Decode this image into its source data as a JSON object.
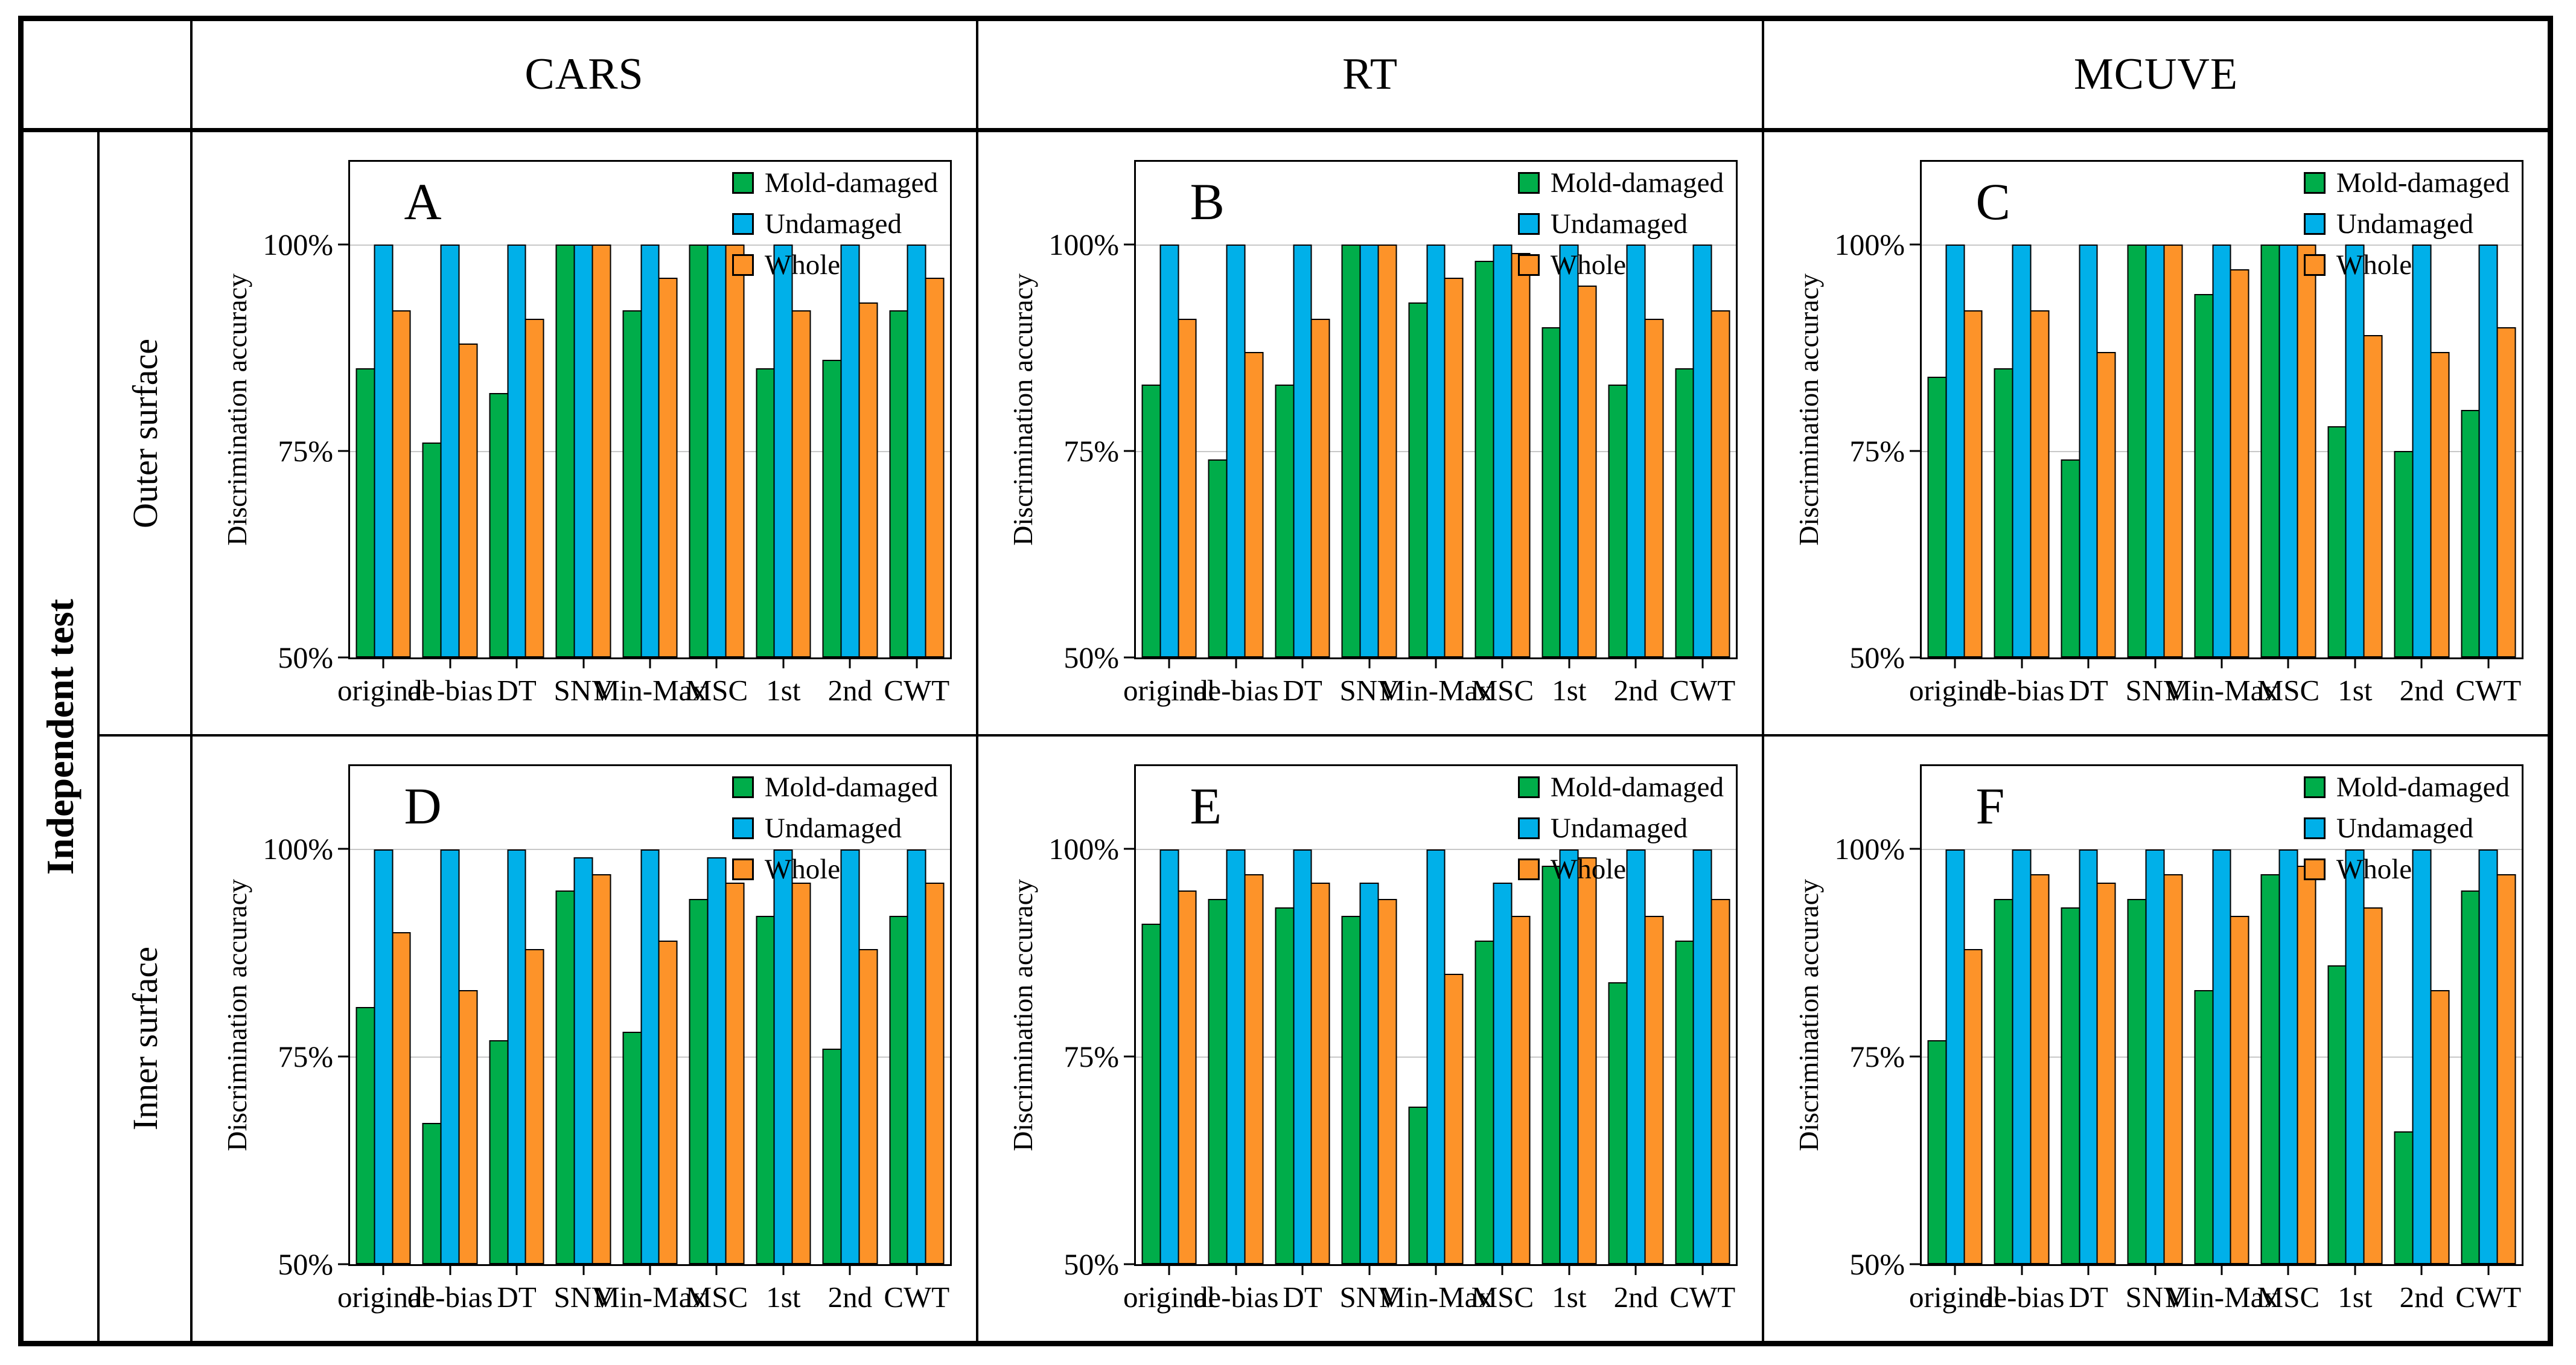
{
  "header": {
    "corner": "",
    "columns": [
      "CARS",
      "RT",
      "MCUVE"
    ]
  },
  "rows": {
    "group_label": "Independent test",
    "row_labels": [
      "Outer surface",
      "Inner surface"
    ]
  },
  "legend": {
    "items": [
      {
        "label": "Mold-damaged",
        "color": "#00AD4A"
      },
      {
        "label": "Undamaged",
        "color": "#00B0E9"
      },
      {
        "label": "Whole",
        "color": "#FD9329"
      }
    ]
  },
  "yaxis": {
    "label": "Discrimination accuracy",
    "ticks": [
      {
        "value": 100,
        "label": "100%"
      },
      {
        "value": 75,
        "label": "75%"
      },
      {
        "value": 50,
        "label": "50%"
      }
    ],
    "gridlines": [
      75,
      100
    ],
    "gridline_color": "#c8c8c8"
  },
  "chart_data": [
    {
      "panel": "A",
      "type": "bar",
      "row": "Outer surface",
      "column": "CARS",
      "ylabel": "Discrimination accuracy",
      "ylim": [
        50,
        100
      ],
      "legend_position": "top-right",
      "categories": [
        "original",
        "de-bias",
        "DT",
        "SNV",
        "Min-Max",
        "MSC",
        "1st",
        "2nd",
        "CWT"
      ],
      "series": [
        {
          "name": "Mold-damaged",
          "values": [
            85,
            76,
            82,
            100,
            92,
            100,
            85,
            86,
            92
          ]
        },
        {
          "name": "Undamaged",
          "values": [
            100,
            100,
            100,
            100,
            100,
            100,
            100,
            100,
            100
          ]
        },
        {
          "name": "Whole",
          "values": [
            92,
            88,
            91,
            100,
            96,
            100,
            92,
            93,
            96
          ]
        }
      ]
    },
    {
      "panel": "B",
      "type": "bar",
      "row": "Outer surface",
      "column": "RT",
      "ylabel": "Discrimination accuracy",
      "ylim": [
        50,
        100
      ],
      "legend_position": "top-right",
      "categories": [
        "original",
        "de-bias",
        "DT",
        "SNV",
        "Min-Max",
        "MSC",
        "1st",
        "2nd",
        "CWT"
      ],
      "series": [
        {
          "name": "Mold-damaged",
          "values": [
            83,
            74,
            83,
            100,
            93,
            98,
            90,
            83,
            85
          ]
        },
        {
          "name": "Undamaged",
          "values": [
            100,
            100,
            100,
            100,
            100,
            100,
            100,
            100,
            100
          ]
        },
        {
          "name": "Whole",
          "values": [
            91,
            87,
            91,
            100,
            96,
            99,
            95,
            91,
            92
          ]
        }
      ]
    },
    {
      "panel": "C",
      "type": "bar",
      "row": "Outer surface",
      "column": "MCUVE",
      "ylabel": "Discrimination accuracy",
      "ylim": [
        50,
        100
      ],
      "legend_position": "top-right",
      "categories": [
        "original",
        "de-bias",
        "DT",
        "SNV",
        "Min-Max",
        "MSC",
        "1st",
        "2nd",
        "CWT"
      ],
      "series": [
        {
          "name": "Mold-damaged",
          "values": [
            84,
            85,
            74,
            100,
            94,
            100,
            78,
            75,
            80
          ]
        },
        {
          "name": "Undamaged",
          "values": [
            100,
            100,
            100,
            100,
            100,
            100,
            100,
            100,
            100
          ]
        },
        {
          "name": "Whole",
          "values": [
            92,
            92,
            87,
            100,
            97,
            100,
            89,
            87,
            90
          ]
        }
      ]
    },
    {
      "panel": "D",
      "type": "bar",
      "row": "Inner surface",
      "column": "CARS",
      "ylabel": "Discrimination accuracy",
      "ylim": [
        50,
        100
      ],
      "legend_position": "top-right",
      "categories": [
        "original",
        "de-bias",
        "DT",
        "SNV",
        "Min-Max",
        "MSC",
        "1st",
        "2nd",
        "CWT"
      ],
      "series": [
        {
          "name": "Mold-damaged",
          "values": [
            81,
            67,
            77,
            95,
            78,
            94,
            92,
            76,
            92
          ]
        },
        {
          "name": "Undamaged",
          "values": [
            100,
            100,
            100,
            99,
            100,
            99,
            100,
            100,
            100
          ]
        },
        {
          "name": "Whole",
          "values": [
            90,
            83,
            88,
            97,
            89,
            96,
            96,
            88,
            96
          ]
        }
      ]
    },
    {
      "panel": "E",
      "type": "bar",
      "row": "Inner surface",
      "column": "RT",
      "ylabel": "Discrimination accuracy",
      "ylim": [
        50,
        100
      ],
      "legend_position": "top-right",
      "categories": [
        "original",
        "de-bias",
        "DT",
        "SNV",
        "Min-Max",
        "MSC",
        "1st",
        "2nd",
        "CWT"
      ],
      "series": [
        {
          "name": "Mold-damaged",
          "values": [
            91,
            94,
            93,
            92,
            69,
            89,
            98,
            84,
            89
          ]
        },
        {
          "name": "Undamaged",
          "values": [
            100,
            100,
            100,
            96,
            100,
            96,
            100,
            100,
            100
          ]
        },
        {
          "name": "Whole",
          "values": [
            95,
            97,
            96,
            94,
            85,
            92,
            99,
            92,
            94
          ]
        }
      ]
    },
    {
      "panel": "F",
      "type": "bar",
      "row": "Inner surface",
      "column": "MCUVE",
      "ylabel": "Discrimination accuracy",
      "ylim": [
        50,
        100
      ],
      "legend_position": "top-right",
      "categories": [
        "original",
        "de-bias",
        "DT",
        "SNV",
        "Min-Max",
        "MSC",
        "1st",
        "2nd",
        "CWT"
      ],
      "series": [
        {
          "name": "Mold-damaged",
          "values": [
            77,
            94,
            93,
            94,
            83,
            97,
            86,
            66,
            95
          ]
        },
        {
          "name": "Undamaged",
          "values": [
            100,
            100,
            100,
            100,
            100,
            100,
            100,
            100,
            100
          ]
        },
        {
          "name": "Whole",
          "values": [
            88,
            97,
            96,
            97,
            92,
            98,
            93,
            83,
            97
          ]
        }
      ]
    }
  ]
}
